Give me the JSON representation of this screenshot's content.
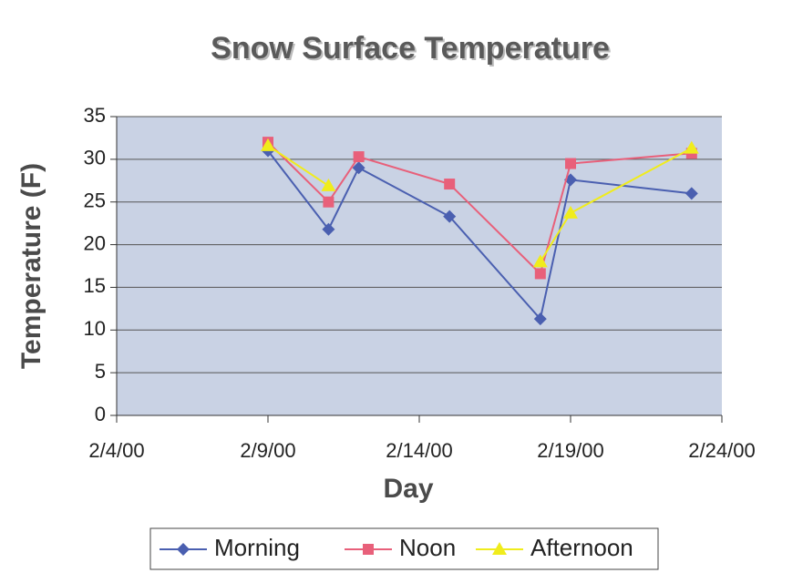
{
  "chart_data": {
    "type": "line",
    "title": "Snow Surface Temperature",
    "x_label": "Day",
    "y_label": "Temperature (F)",
    "x": [
      "2/9/00",
      "2/11/00",
      "2/12/00",
      "2/15/00",
      "2/18/00",
      "2/19/00",
      "2/23/00"
    ],
    "series": [
      {
        "name": "Morning",
        "color": "#4a5fb0",
        "marker": "diamond",
        "values": [
          31,
          21.8,
          29,
          23.3,
          11.3,
          27.6,
          26
        ]
      },
      {
        "name": "Noon",
        "color": "#e8607a",
        "marker": "square",
        "values": [
          32,
          25,
          30.3,
          27.1,
          16.6,
          29.5,
          30.7
        ]
      },
      {
        "name": "Afternoon",
        "color": "#f0ec1c",
        "marker": "triangle",
        "values": [
          31.6,
          26.9,
          null,
          null,
          18,
          23.7,
          31.3
        ]
      }
    ],
    "xlim": [
      "2/4/00",
      "2/24/00"
    ],
    "xticks": [
      "2/4/00",
      "2/9/00",
      "2/14/00",
      "2/19/00",
      "2/24/00"
    ],
    "ylim": [
      0,
      35
    ],
    "yticks": [
      0,
      5,
      10,
      15,
      20,
      25,
      30,
      35
    ],
    "grid": true,
    "legend": "bottom"
  }
}
